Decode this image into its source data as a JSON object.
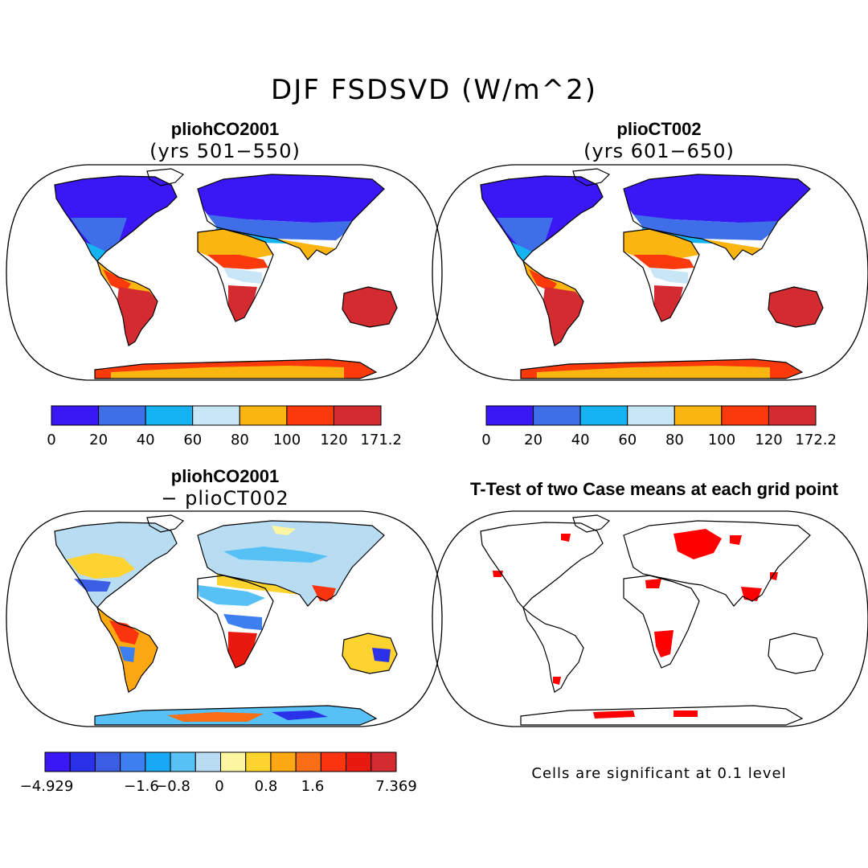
{
  "title": "DJF FSDSVD (W/m^2)",
  "colors": {
    "abs_scale": [
      "#3a17f5",
      "#3e6fe8",
      "#16b3f2",
      "#c8e6f5",
      "#fbb511",
      "#fb3a0c",
      "#d42b30"
    ],
    "diff_scale": [
      "#3a17f5",
      "#2a31e8",
      "#3b5ee4",
      "#3e7ff0",
      "#19a8f5",
      "#57c1f5",
      "#b8ddf3",
      "#fdf6a1",
      "#fdd330",
      "#fba812",
      "#fb6e15",
      "#fb3410",
      "#e81a10",
      "#d42b30"
    ],
    "signif": "#ff0000",
    "land_outline": "#000000"
  },
  "panels": {
    "tl": {
      "title": "pliohCO2001",
      "subtitle": "(yrs 501−550)",
      "colorbar_labels": [
        "0",
        "20",
        "40",
        "60",
        "80",
        "100",
        "120",
        "171.2"
      ]
    },
    "tr": {
      "title": "plioCT002",
      "subtitle": "(yrs 601−650)",
      "colorbar_labels": [
        "0",
        "20",
        "40",
        "60",
        "80",
        "100",
        "120",
        "172.2"
      ]
    },
    "bl": {
      "title": "pliohCO2001",
      "subtitle": "− plioCT002",
      "colorbar_labels": [
        "−4.929",
        "−1.6",
        "−0.8",
        "0",
        "0.8",
        "1.6",
        "7.369"
      ]
    },
    "br": {
      "title": "T-Test of two Case means at each grid point",
      "note": "Cells are significant at 0.1 level"
    }
  }
}
